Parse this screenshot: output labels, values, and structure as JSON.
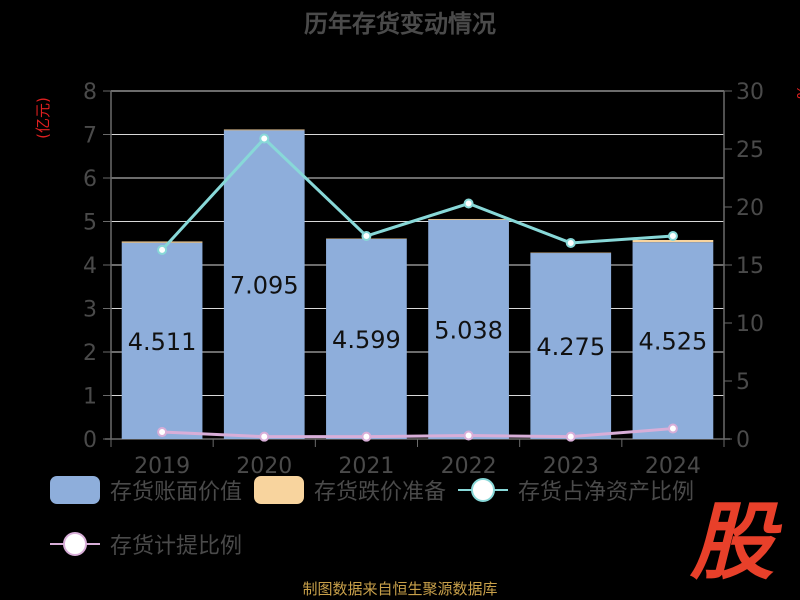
{
  "chart_data": {
    "type": "bar",
    "title": "历年存货变动情况",
    "categories": [
      "2019",
      "2020",
      "2021",
      "2022",
      "2023",
      "2024"
    ],
    "y_left": {
      "label": "(亿元)",
      "range": [
        0,
        8
      ],
      "ticks": [
        "0",
        "1",
        "2",
        "3",
        "4",
        "5",
        "6",
        "7",
        "8"
      ]
    },
    "y_right": {
      "label": "%",
      "range": [
        0,
        30
      ],
      "ticks": [
        "0",
        "5",
        "10",
        "15",
        "20",
        "25",
        "30"
      ]
    },
    "grid": true,
    "legend_position": "bottom-left",
    "series": [
      {
        "name": "存货账面价值",
        "kind": "bar",
        "axis": "left",
        "color": "#8eaedb",
        "values": [
          4.511,
          7.095,
          4.599,
          5.038,
          4.275,
          4.525
        ],
        "labels": [
          "4.511",
          "7.095",
          "4.599",
          "5.038",
          "4.275",
          "4.525"
        ]
      },
      {
        "name": "存货跌价准备",
        "kind": "bar",
        "axis": "left",
        "color": "#f8d49e",
        "values": [
          0.03,
          0.02,
          0.01,
          0.02,
          0.01,
          0.05
        ]
      },
      {
        "name": "存货占净资产比例",
        "kind": "line",
        "axis": "right",
        "color": "#88d8d8",
        "values": [
          16.3,
          25.9,
          17.5,
          20.3,
          16.9,
          17.5
        ]
      },
      {
        "name": "存货计提比例",
        "kind": "line",
        "axis": "right",
        "color": "#d8aed8",
        "values": [
          0.6,
          0.2,
          0.2,
          0.3,
          0.2,
          0.9
        ]
      }
    ]
  },
  "source_text": "制图数据来自恒生聚源数据库",
  "logo_text": "股"
}
